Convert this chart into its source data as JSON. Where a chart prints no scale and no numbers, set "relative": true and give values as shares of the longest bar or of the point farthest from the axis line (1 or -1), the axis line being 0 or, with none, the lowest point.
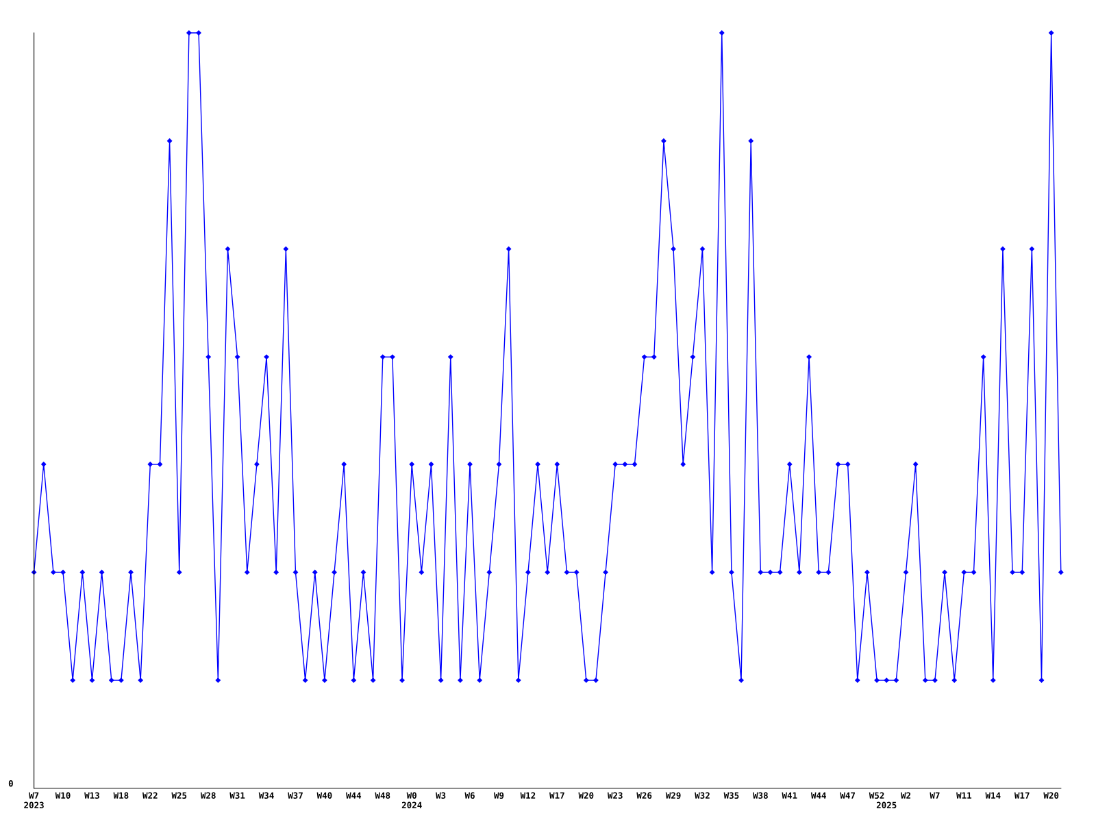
{
  "chart_data": {
    "type": "line",
    "relative": true,
    "annotations": [
      "0"
    ],
    "marker": "diamond",
    "line_style": "solid",
    "grid": false,
    "categories": [
      "W7\n2023",
      null,
      null,
      "W10",
      null,
      null,
      "W13",
      null,
      null,
      "W18",
      null,
      null,
      "W22",
      null,
      null,
      "W25",
      null,
      null,
      "W28",
      null,
      null,
      "W31",
      null,
      null,
      "W34",
      null,
      null,
      "W37",
      null,
      null,
      "W40",
      null,
      null,
      "W44",
      null,
      null,
      "W48",
      null,
      null,
      "W0\n2024",
      null,
      null,
      "W3",
      null,
      null,
      "W6",
      null,
      null,
      "W9",
      null,
      null,
      "W12",
      null,
      null,
      "W17",
      null,
      null,
      "W20",
      null,
      null,
      "W23",
      null,
      null,
      "W26",
      null,
      null,
      "W29",
      null,
      null,
      "W32",
      null,
      null,
      "W35",
      null,
      null,
      "W38",
      null,
      null,
      "W41",
      null,
      null,
      "W44",
      null,
      null,
      "W47",
      null,
      null,
      "W52",
      "\n2025",
      null,
      "W2",
      null,
      null,
      "W7",
      null,
      null,
      "W11",
      null,
      null,
      "W14",
      null,
      null,
      "W17",
      null,
      null,
      "W20",
      null
    ],
    "series": [
      {
        "color": "#0000ff",
        "values": [
          0.286,
          0.429,
          0.286,
          0.286,
          0.143,
          0.286,
          0.143,
          0.286,
          0.143,
          0.143,
          0.286,
          0.143,
          0.429,
          0.429,
          0.857,
          0.286,
          1,
          1,
          0.571,
          0.143,
          0.714,
          0.571,
          0.286,
          0.429,
          0.571,
          0.286,
          0.714,
          0.286,
          0.143,
          0.286,
          0.143,
          0.286,
          0.429,
          0.143,
          0.286,
          0.143,
          0.571,
          0.571,
          0.143,
          0.429,
          0.286,
          0.429,
          0.143,
          0.571,
          0.143,
          0.429,
          0.143,
          0.286,
          0.429,
          0.714,
          0.143,
          0.286,
          0.429,
          0.286,
          0.429,
          0.286,
          0.286,
          0.143,
          0.143,
          0.286,
          0.429,
          0.429,
          0.429,
          0.571,
          0.571,
          0.857,
          0.714,
          0.429,
          0.571,
          0.714,
          0.286,
          1,
          0.286,
          0.143,
          0.857,
          0.286,
          0.286,
          0.286,
          0.429,
          0.286,
          0.571,
          0.286,
          0.286,
          0.429,
          0.429,
          0.143,
          0.286,
          0.143,
          0.143,
          0.143,
          0.286,
          0.429,
          0.143,
          0.143,
          0.286,
          0.143,
          0.286,
          0.286,
          0.571,
          0.143,
          0.714,
          0.286,
          0.286,
          0.714,
          0.143,
          1,
          0.286
        ]
      }
    ]
  }
}
